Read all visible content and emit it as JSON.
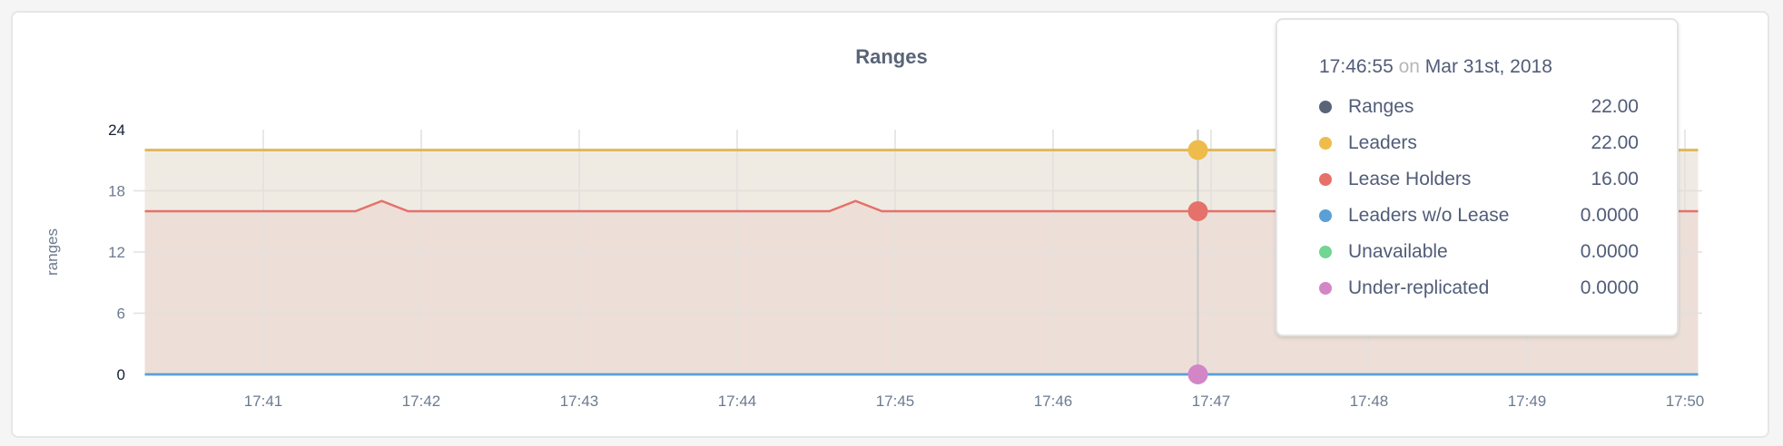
{
  "colors": {
    "Ranges": "#5a6478",
    "Leaders": "#edbc4a",
    "Lease Holders": "#e5716a",
    "Leaders w/o Lease": "#5a9fd6",
    "Unavailable": "#73d593",
    "Under-replicated": "#d386c6",
    "leaders_fill": "#efebe3",
    "lease_fill": "#eddfd8",
    "grid": "#e3e0dd"
  },
  "chart_data": {
    "type": "area",
    "title": "Ranges",
    "ylabel": "ranges",
    "xlabel": "",
    "ylim": [
      0,
      24
    ],
    "yticks": [
      "0",
      "6",
      "12",
      "18",
      "24"
    ],
    "xlim": [
      "17:40:15",
      "17:50:07"
    ],
    "xticks": [
      "17:41",
      "17:42",
      "17:43",
      "17:44",
      "17:45",
      "17:46",
      "17:47",
      "17:48",
      "17:49",
      "17:50"
    ],
    "grid": true,
    "series": [
      {
        "name": "Ranges",
        "points": [
          [
            "17:40:15",
            22
          ],
          [
            "17:50:05",
            22
          ]
        ]
      },
      {
        "name": "Leaders",
        "points": [
          [
            "17:40:15",
            22
          ],
          [
            "17:50:05",
            22
          ]
        ]
      },
      {
        "name": "Lease Holders",
        "points": [
          [
            "17:40:15",
            16
          ],
          [
            "17:41:35",
            16
          ],
          [
            "17:41:45",
            17
          ],
          [
            "17:41:55",
            16
          ],
          [
            "17:44:35",
            16
          ],
          [
            "17:44:45",
            17
          ],
          [
            "17:44:55",
            16
          ],
          [
            "17:50:05",
            16
          ]
        ]
      },
      {
        "name": "Leaders w/o Lease",
        "points": [
          [
            "17:40:15",
            0
          ],
          [
            "17:50:05",
            0
          ]
        ]
      },
      {
        "name": "Unavailable",
        "points": [
          [
            "17:40:15",
            0
          ],
          [
            "17:50:05",
            0
          ]
        ]
      },
      {
        "name": "Under-replicated",
        "points": [
          [
            "17:40:15",
            0
          ],
          [
            "17:50:05",
            0
          ]
        ]
      }
    ]
  },
  "tooltip": {
    "time": "17:46:55",
    "on": "on",
    "date": "Mar 31st, 2018",
    "rows": [
      {
        "label": "Ranges",
        "value": "22.00"
      },
      {
        "label": "Leaders",
        "value": "22.00"
      },
      {
        "label": "Lease Holders",
        "value": "16.00"
      },
      {
        "label": "Leaders w/o Lease",
        "value": "0.0000"
      },
      {
        "label": "Unavailable",
        "value": "0.0000"
      },
      {
        "label": "Under-replicated",
        "value": "0.0000"
      }
    ]
  }
}
